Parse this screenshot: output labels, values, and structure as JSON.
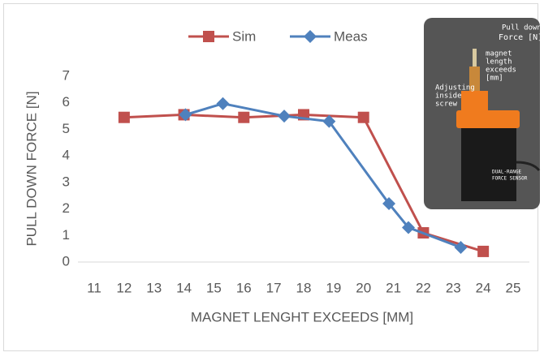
{
  "chart_data": {
    "type": "line",
    "x_label": "MAGNET LENGHT EXCEEDS [MM]",
    "y_label": "PULL DOWN FORCE [N]",
    "xlim": [
      11,
      25
    ],
    "xticks": [
      11,
      12,
      13,
      14,
      15,
      16,
      17,
      18,
      19,
      20,
      21,
      22,
      23,
      24,
      25
    ],
    "ylim": [
      0,
      7
    ],
    "yticks": [
      0,
      1,
      2,
      3,
      4,
      5,
      6,
      7
    ],
    "grid": false,
    "legend": "top",
    "series": [
      {
        "name": "Sim",
        "color": "#c0504d",
        "marker": "square",
        "x": [
          12,
          14,
          16,
          18,
          20,
          22,
          24
        ],
        "values": [
          5.45,
          5.55,
          5.45,
          5.55,
          5.45,
          1.1,
          0.4
        ]
      },
      {
        "name": "Meas",
        "color": "#4f81bd",
        "marker": "diamond",
        "x": [
          14.05,
          15.3,
          17.35,
          18.85,
          20.85,
          21.5,
          23.25
        ],
        "values": [
          5.55,
          5.97,
          5.5,
          5.3,
          2.2,
          1.3,
          0.55
        ]
      }
    ],
    "annotations": [
      "Pull down",
      "Force [N]",
      "magnet",
      "length",
      "exceeds",
      "[mm]",
      "Adjusting",
      "inside",
      "screw",
      "DUAL-RANGE",
      "FORCE SENSOR"
    ]
  }
}
